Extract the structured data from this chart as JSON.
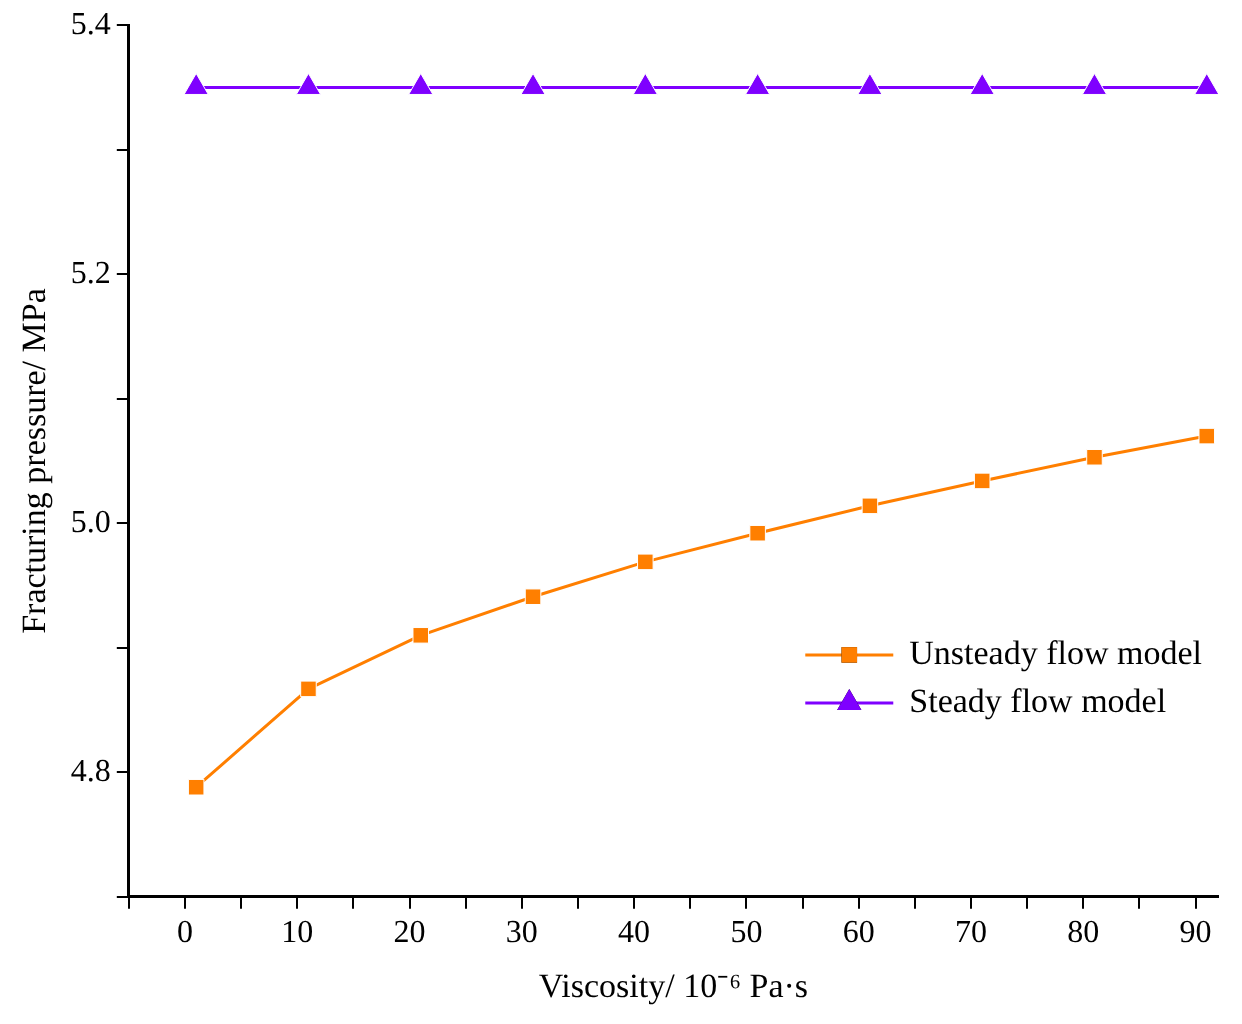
{
  "chart_data": {
    "type": "line",
    "xlabel": "Viscosity/ 10⁻⁶ Pa·s",
    "ylabel": "Fracturing pressure/ MPa",
    "x": [
      1,
      11,
      21,
      31,
      41,
      51,
      61,
      71,
      81,
      91
    ],
    "series": [
      {
        "name": "Unsteady flow model",
        "color": "#ff7f00",
        "marker": "square",
        "values": [
          4.788,
          4.867,
          4.91,
          4.941,
          4.969,
          4.992,
          5.014,
          5.034,
          5.053,
          5.07
        ]
      },
      {
        "name": "Steady flow model",
        "color": "#7f00ff",
        "marker": "triangle",
        "values": [
          5.35,
          5.35,
          5.35,
          5.35,
          5.35,
          5.35,
          5.35,
          5.35,
          5.35,
          5.35
        ]
      }
    ],
    "xlim": [
      -5,
      92
    ],
    "xticks": [
      {
        "value": -5,
        "label": null
      },
      0,
      {
        "value": 5,
        "label": null
      },
      10,
      {
        "value": 15,
        "label": null
      },
      20,
      {
        "value": 25,
        "label": null
      },
      30,
      {
        "value": 35,
        "label": null
      },
      40,
      {
        "value": 45,
        "label": null
      },
      50,
      {
        "value": 55,
        "label": null
      },
      60,
      {
        "value": 65,
        "label": null
      },
      70,
      {
        "value": 75,
        "label": null
      },
      80,
      {
        "value": 85,
        "label": null
      },
      90
    ],
    "ylim": [
      4.7,
      5.4
    ],
    "yticks": [
      {
        "value": 4.7,
        "label": null
      },
      {
        "value": 4.8,
        "label": "4.8"
      },
      {
        "value": 4.9,
        "label": null
      },
      {
        "value": 5.0,
        "label": "5.0"
      },
      {
        "value": 5.1,
        "label": null
      },
      {
        "value": 5.2,
        "label": "5.2"
      },
      {
        "value": 5.3,
        "label": null
      },
      {
        "value": 5.4,
        "label": "5.4"
      }
    ],
    "grid": false,
    "legend": "right",
    "line_style": "solid"
  }
}
